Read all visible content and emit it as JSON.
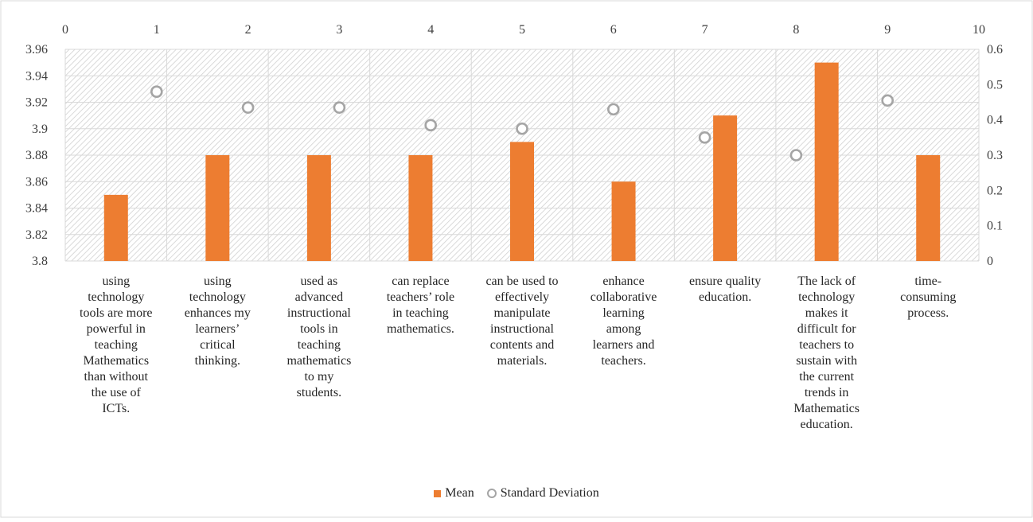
{
  "chart_data": {
    "type": "bar",
    "categories": [
      "using technology tools are more powerful in teaching Mathematics than without the use of ICTs.",
      "using technology enhances my learners’ critical thinking.",
      "used as advanced instructional tools in teaching mathematics to my students.",
      "can replace teachers’ role in teaching mathematics.",
      "can be used to effectively manipulate instructional contents and materials.",
      "enhance collaborative learning among learners and teachers.",
      "ensure quality education.",
      "The lack of technology makes it difficult for teachers to sustain with the current trends in Mathematics education.",
      "time-consuming process."
    ],
    "category_lines": [
      [
        "using",
        "technology",
        "tools are more",
        "powerful in",
        "teaching",
        "Mathematics",
        "than without",
        "the use of",
        "ICTs."
      ],
      [
        "using",
        "technology",
        "enhances my",
        "learners’",
        "critical",
        "thinking."
      ],
      [
        "used as",
        "advanced",
        "instructional",
        "tools in",
        "teaching",
        "mathematics",
        "to my",
        "students."
      ],
      [
        "can replace",
        "teachers’ role",
        "in teaching",
        "mathematics."
      ],
      [
        "can be used to",
        "effectively",
        "manipulate",
        "instructional",
        "contents and",
        "materials."
      ],
      [
        "enhance",
        "collaborative",
        "learning",
        "among",
        "learners and",
        "teachers."
      ],
      [
        "ensure quality",
        "education."
      ],
      [
        "The lack of",
        "technology",
        "makes it",
        "difficult for",
        "teachers to",
        "sustain with",
        "the current",
        "trends in",
        "Mathematics",
        "education."
      ],
      [
        "time-",
        "consuming",
        "process."
      ]
    ],
    "series": [
      {
        "name": "Mean",
        "kind": "bar",
        "axis": "left",
        "color": "#ed7d31",
        "values": [
          3.85,
          3.88,
          3.88,
          3.88,
          3.89,
          3.86,
          3.91,
          3.95,
          3.88
        ]
      },
      {
        "name": "Standard Deviation",
        "kind": "scatter",
        "axis": "right",
        "color": "#a5a5a5",
        "x": [
          1.0,
          2.0,
          3.0,
          4.0,
          5.0,
          6.0,
          7.0,
          8.0,
          9.0
        ],
        "values": [
          0.48,
          0.435,
          0.435,
          0.385,
          0.375,
          0.43,
          0.35,
          0.3,
          0.455
        ]
      }
    ],
    "y_left": {
      "min": 3.8,
      "max": 3.96,
      "ticks": [
        "3.8",
        "3.82",
        "3.84",
        "3.86",
        "3.88",
        "3.9",
        "3.92",
        "3.94",
        "3.96"
      ]
    },
    "y_right": {
      "min": 0,
      "max": 0.6,
      "ticks": [
        "0",
        "0.1",
        "0.2",
        "0.3",
        "0.4",
        "0.5",
        "0.6"
      ]
    },
    "x_top": {
      "min": 0,
      "max": 10,
      "ticks": [
        "0",
        "1",
        "2",
        "3",
        "4",
        "5",
        "6",
        "7",
        "8",
        "9",
        "10"
      ]
    },
    "grid": true,
    "legend_position": "bottom",
    "plot_background": "hatched"
  }
}
